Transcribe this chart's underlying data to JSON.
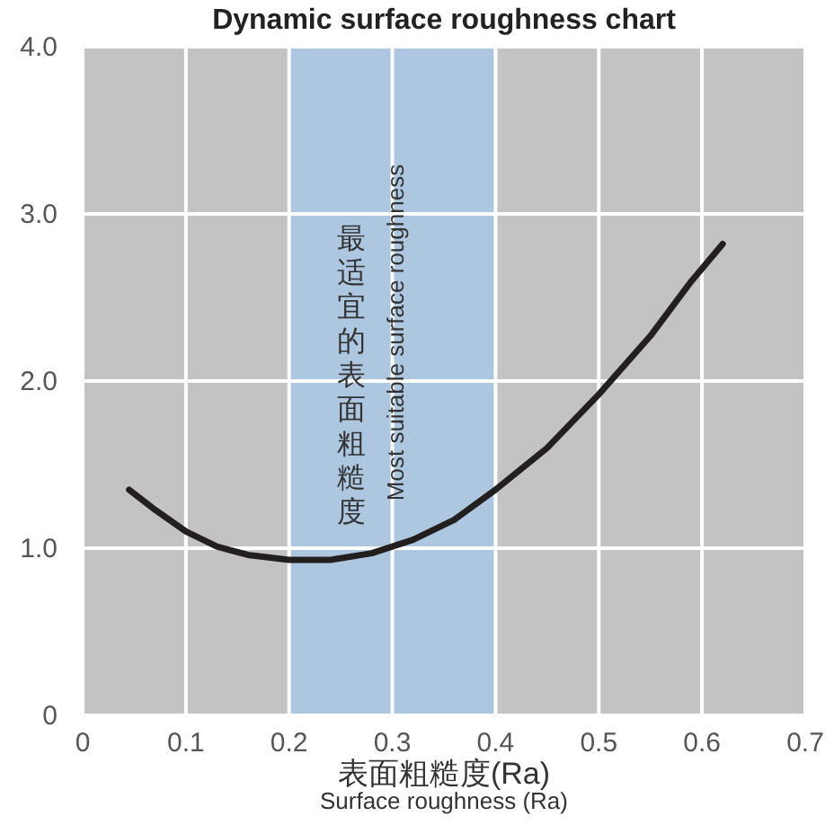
{
  "chart_data": {
    "type": "line",
    "title": "Dynamic surface roughness chart",
    "xlabel": "表面粗糙度(Ra)\nSurface roughness (Ra)",
    "x": [
      0.045,
      0.07,
      0.1,
      0.13,
      0.16,
      0.2,
      0.24,
      0.28,
      0.32,
      0.36,
      0.4,
      0.45,
      0.5,
      0.55,
      0.59,
      0.62
    ],
    "series": [
      {
        "color": "#231f1f",
        "values": [
          1.35,
          1.23,
          1.1,
          1.01,
          0.96,
          0.93,
          0.93,
          0.97,
          1.05,
          1.17,
          1.35,
          1.6,
          1.92,
          2.27,
          2.6,
          2.82
        ]
      }
    ],
    "xlim": [
      0,
      0.7
    ],
    "ylim": [
      0,
      4
    ],
    "xticks": [
      0,
      0.1,
      0.2,
      0.3,
      0.4,
      0.5,
      0.6,
      0.7
    ],
    "yticks": [
      0,
      {
        "value": 1,
        "label": "1.0"
      },
      {
        "value": 2,
        "label": "2.0"
      },
      {
        "value": 3,
        "label": "3.0"
      },
      {
        "value": 4,
        "label": "4.0"
      }
    ],
    "bands": [
      {
        "axis": "x",
        "from": 0.2,
        "to": 0.4,
        "label": "最适宜的表面粗糙度",
        "color": "#aec7e1"
      }
    ],
    "annotations": [
      "Most suitable surface roughness"
    ],
    "grid": true,
    "marker": "none",
    "line_style": "solid"
  }
}
